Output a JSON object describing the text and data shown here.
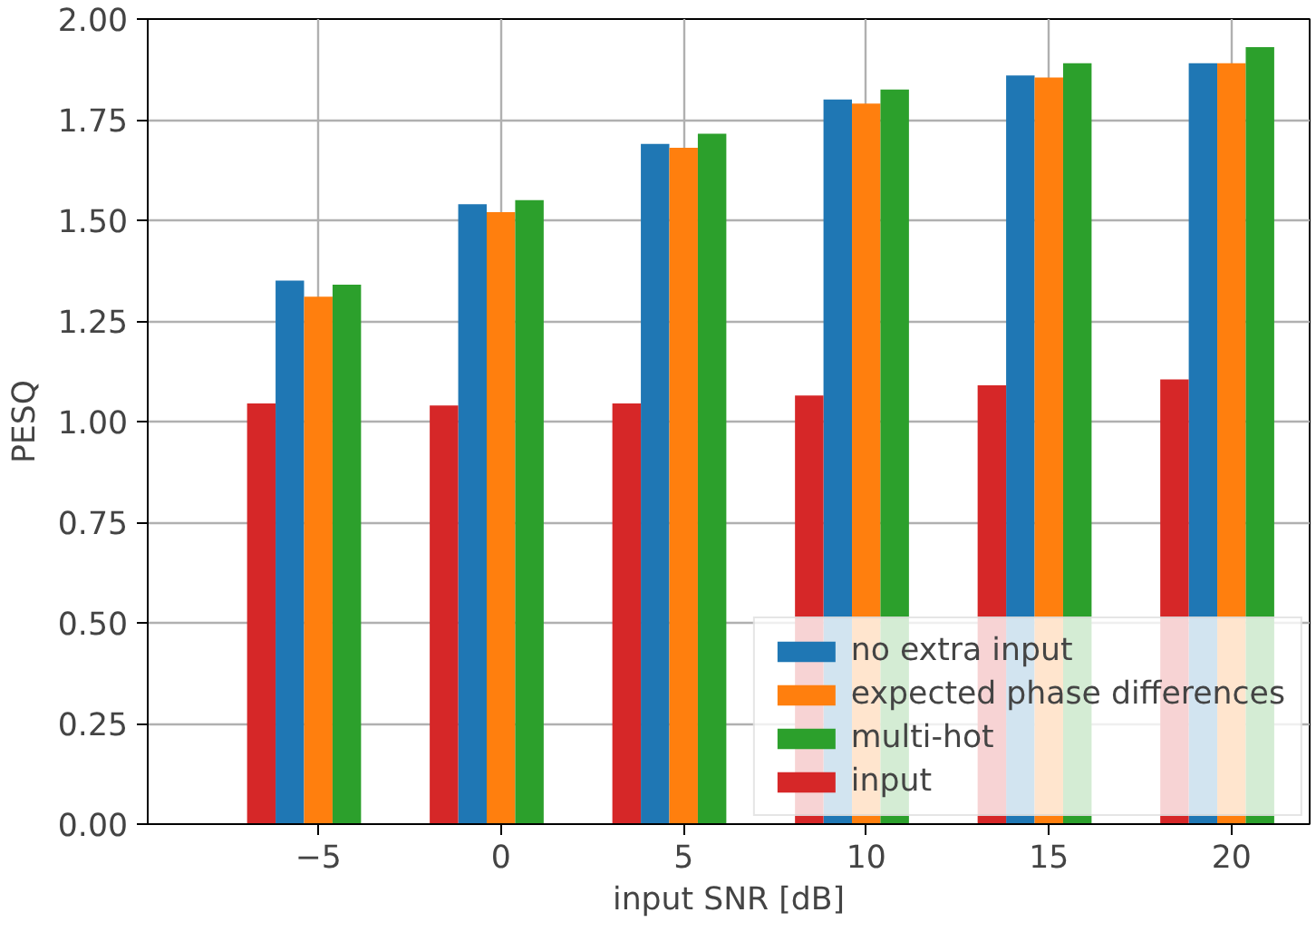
{
  "chart_data": {
    "type": "bar",
    "xlabel": "input SNR [dB]",
    "ylabel": "PESQ",
    "x": [
      -5,
      0,
      5,
      10,
      15,
      20
    ],
    "series": [
      {
        "name": "no extra input",
        "color": "#1f77b4",
        "values": [
          1.35,
          1.54,
          1.69,
          1.8,
          1.86,
          1.89
        ]
      },
      {
        "name": "expected phase differences",
        "color": "#ff7f0e",
        "values": [
          1.31,
          1.52,
          1.68,
          1.79,
          1.855,
          1.89
        ]
      },
      {
        "name": "multi-hot",
        "color": "#2ca02c",
        "values": [
          1.34,
          1.55,
          1.715,
          1.825,
          1.89,
          1.93
        ]
      },
      {
        "name": "input",
        "color": "#d62728",
        "values": [
          1.045,
          1.04,
          1.045,
          1.065,
          1.09,
          1.105
        ]
      }
    ],
    "xlim": [
      -9.67,
      22.14
    ],
    "ylim": [
      0,
      2.0
    ],
    "xticks": [
      {
        "value": -5,
        "label": "−5"
      },
      0,
      5,
      10,
      15,
      20
    ],
    "yticks": [
      {
        "value": 0,
        "label": "0.00"
      },
      {
        "value": 0.25,
        "label": "0.25"
      },
      {
        "value": 0.5,
        "label": "0.50"
      },
      {
        "value": 0.75,
        "label": "0.75"
      },
      {
        "value": 1.0,
        "label": "1.00"
      },
      {
        "value": 1.25,
        "label": "1.25"
      },
      {
        "value": 1.5,
        "label": "1.50"
      },
      {
        "value": 1.75,
        "label": "1.75"
      },
      {
        "value": 2.0,
        "label": "2.00"
      }
    ],
    "grid": true,
    "legend": "bottom right"
  }
}
